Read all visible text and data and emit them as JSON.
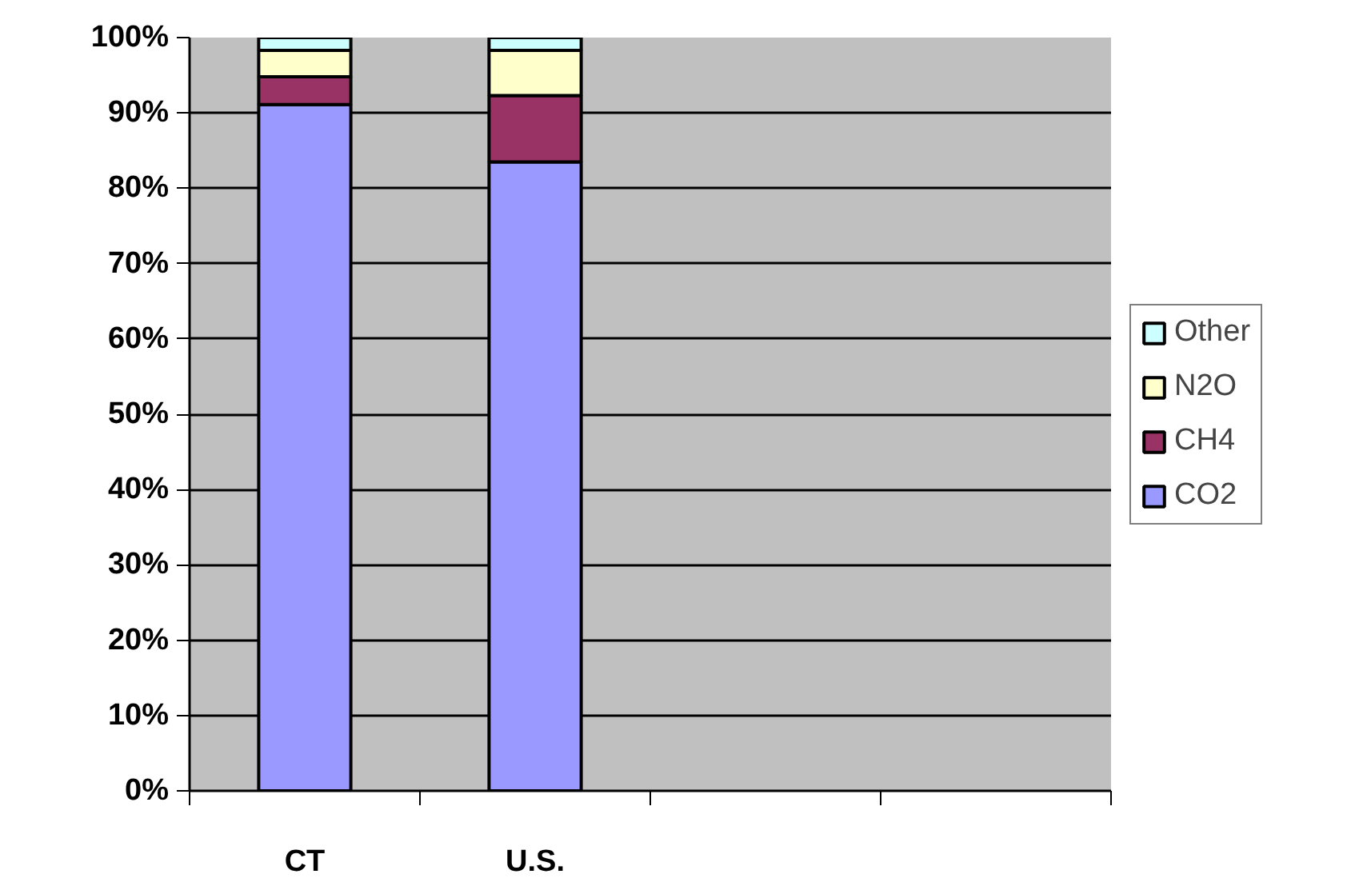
{
  "chart_data": {
    "type": "bar",
    "stacked": true,
    "categories": [
      "CT",
      "U.S.",
      null,
      null
    ],
    "series": [
      {
        "name": "CO2",
        "color": "#9999ff",
        "values": [
          91.1,
          83.5,
          null,
          null
        ]
      },
      {
        "name": "CH4",
        "color": "#993366",
        "values": [
          3.7,
          8.8,
          null,
          null
        ]
      },
      {
        "name": "N2O",
        "color": "#ffffcc",
        "values": [
          3.5,
          6.0,
          null,
          null
        ]
      },
      {
        "name": "Other",
        "color": "#ccffff",
        "values": [
          1.7,
          1.7,
          null,
          null
        ]
      }
    ],
    "ylim": [
      0,
      100
    ],
    "yticks": [
      {
        "value": 0,
        "label": "0%"
      },
      {
        "value": 10,
        "label": "10%"
      },
      {
        "value": 20,
        "label": "20%"
      },
      {
        "value": 30,
        "label": "30%"
      },
      {
        "value": 40,
        "label": "40%"
      },
      {
        "value": 50,
        "label": "50%"
      },
      {
        "value": 60,
        "label": "60%"
      },
      {
        "value": 70,
        "label": "70%"
      },
      {
        "value": 80,
        "label": "80%"
      },
      {
        "value": 90,
        "label": "90%"
      },
      {
        "value": 100,
        "label": "100%"
      }
    ],
    "grid": "y",
    "legend": "right"
  }
}
